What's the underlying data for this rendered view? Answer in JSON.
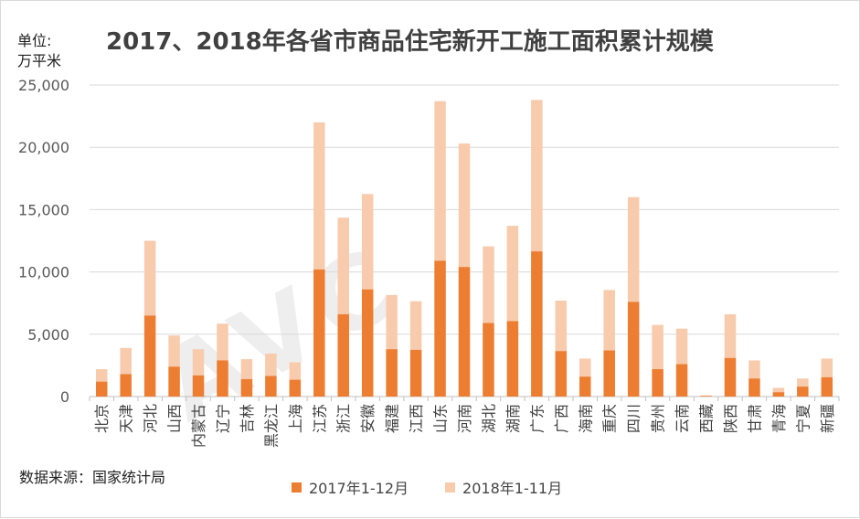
{
  "header": {
    "unit_line1": "单位:",
    "unit_line2": "万平米",
    "title": "2017、2018年各省市商品住宅新开工施工面积累计规模"
  },
  "footer": {
    "source": "数据来源：国家统计局"
  },
  "watermark": "AVC",
  "colors": {
    "series_2017": "#ed7d31",
    "series_2018": "#f8cbad",
    "grid": "#d9d9d9",
    "axis": "#bfbfbf",
    "text": "#404040"
  },
  "chart_data": {
    "type": "bar",
    "stacked": true,
    "categories": [
      "北京",
      "天津",
      "河北",
      "山西",
      "内蒙古",
      "辽宁",
      "吉林",
      "黑龙江",
      "上海",
      "江苏",
      "浙江",
      "安徽",
      "福建",
      "江西",
      "山东",
      "河南",
      "湖北",
      "湖南",
      "广东",
      "广西",
      "海南",
      "重庆",
      "四川",
      "贵州",
      "云南",
      "西藏",
      "陕西",
      "甘肃",
      "青海",
      "宁夏",
      "新疆"
    ],
    "series": [
      {
        "name": "2017年1-12月",
        "values": [
          1200,
          1800,
          6500,
          2400,
          1700,
          2900,
          1400,
          1650,
          1350,
          10200,
          6600,
          8600,
          3800,
          3750,
          10900,
          10400,
          5900,
          6050,
          11650,
          3650,
          1600,
          3700,
          7600,
          2200,
          2600,
          50,
          3100,
          1450,
          350,
          800,
          1550
        ]
      },
      {
        "name": "2018年1-11月",
        "values": [
          1000,
          2100,
          6000,
          2500,
          2100,
          2950,
          1600,
          1800,
          1400,
          11800,
          7750,
          7650,
          4350,
          3900,
          12800,
          9900,
          6150,
          7650,
          12150,
          4050,
          1450,
          4850,
          8400,
          3550,
          2850,
          50,
          3500,
          1450,
          350,
          650,
          1500
        ]
      }
    ],
    "ylim": [
      0,
      25000
    ],
    "yticks": [
      "0",
      "5,000",
      "10,000",
      "15,000",
      "20,000",
      "25,000"
    ],
    "ytick_values": [
      0,
      5000,
      10000,
      15000,
      20000,
      25000
    ],
    "grid": true,
    "legend_position": "bottom"
  }
}
